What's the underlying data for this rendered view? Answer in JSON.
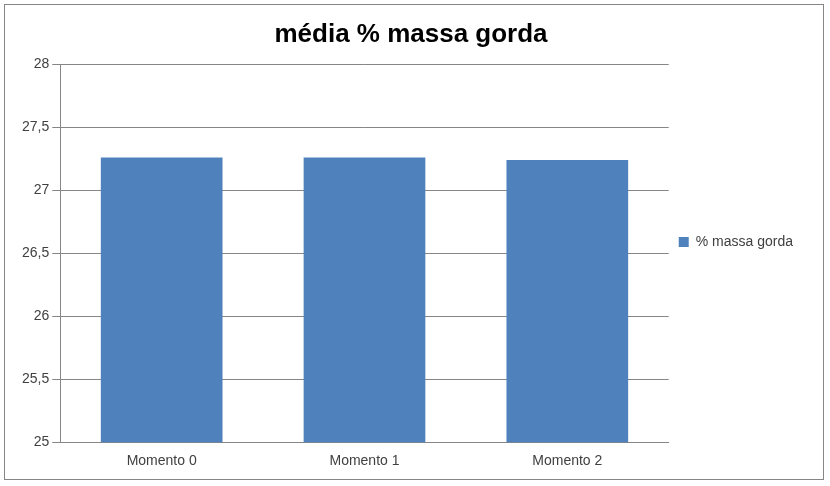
{
  "chart_data": {
    "type": "bar",
    "title": "média % massa gorda",
    "categories": [
      "Momento 0",
      "Momento 1",
      "Momento 2"
    ],
    "series": [
      {
        "name": "% massa gorda",
        "color": "#4f81bd",
        "values": [
          27.26,
          27.26,
          27.24
        ]
      }
    ],
    "ylim": [
      25,
      28
    ],
    "yticks": [
      25,
      {
        "value": 25.5,
        "label": "25,5"
      },
      26,
      {
        "value": 26.5,
        "label": "26,5"
      },
      27,
      {
        "value": 27.5,
        "label": "27,5"
      },
      28
    ],
    "grid": true,
    "legend": "right"
  }
}
